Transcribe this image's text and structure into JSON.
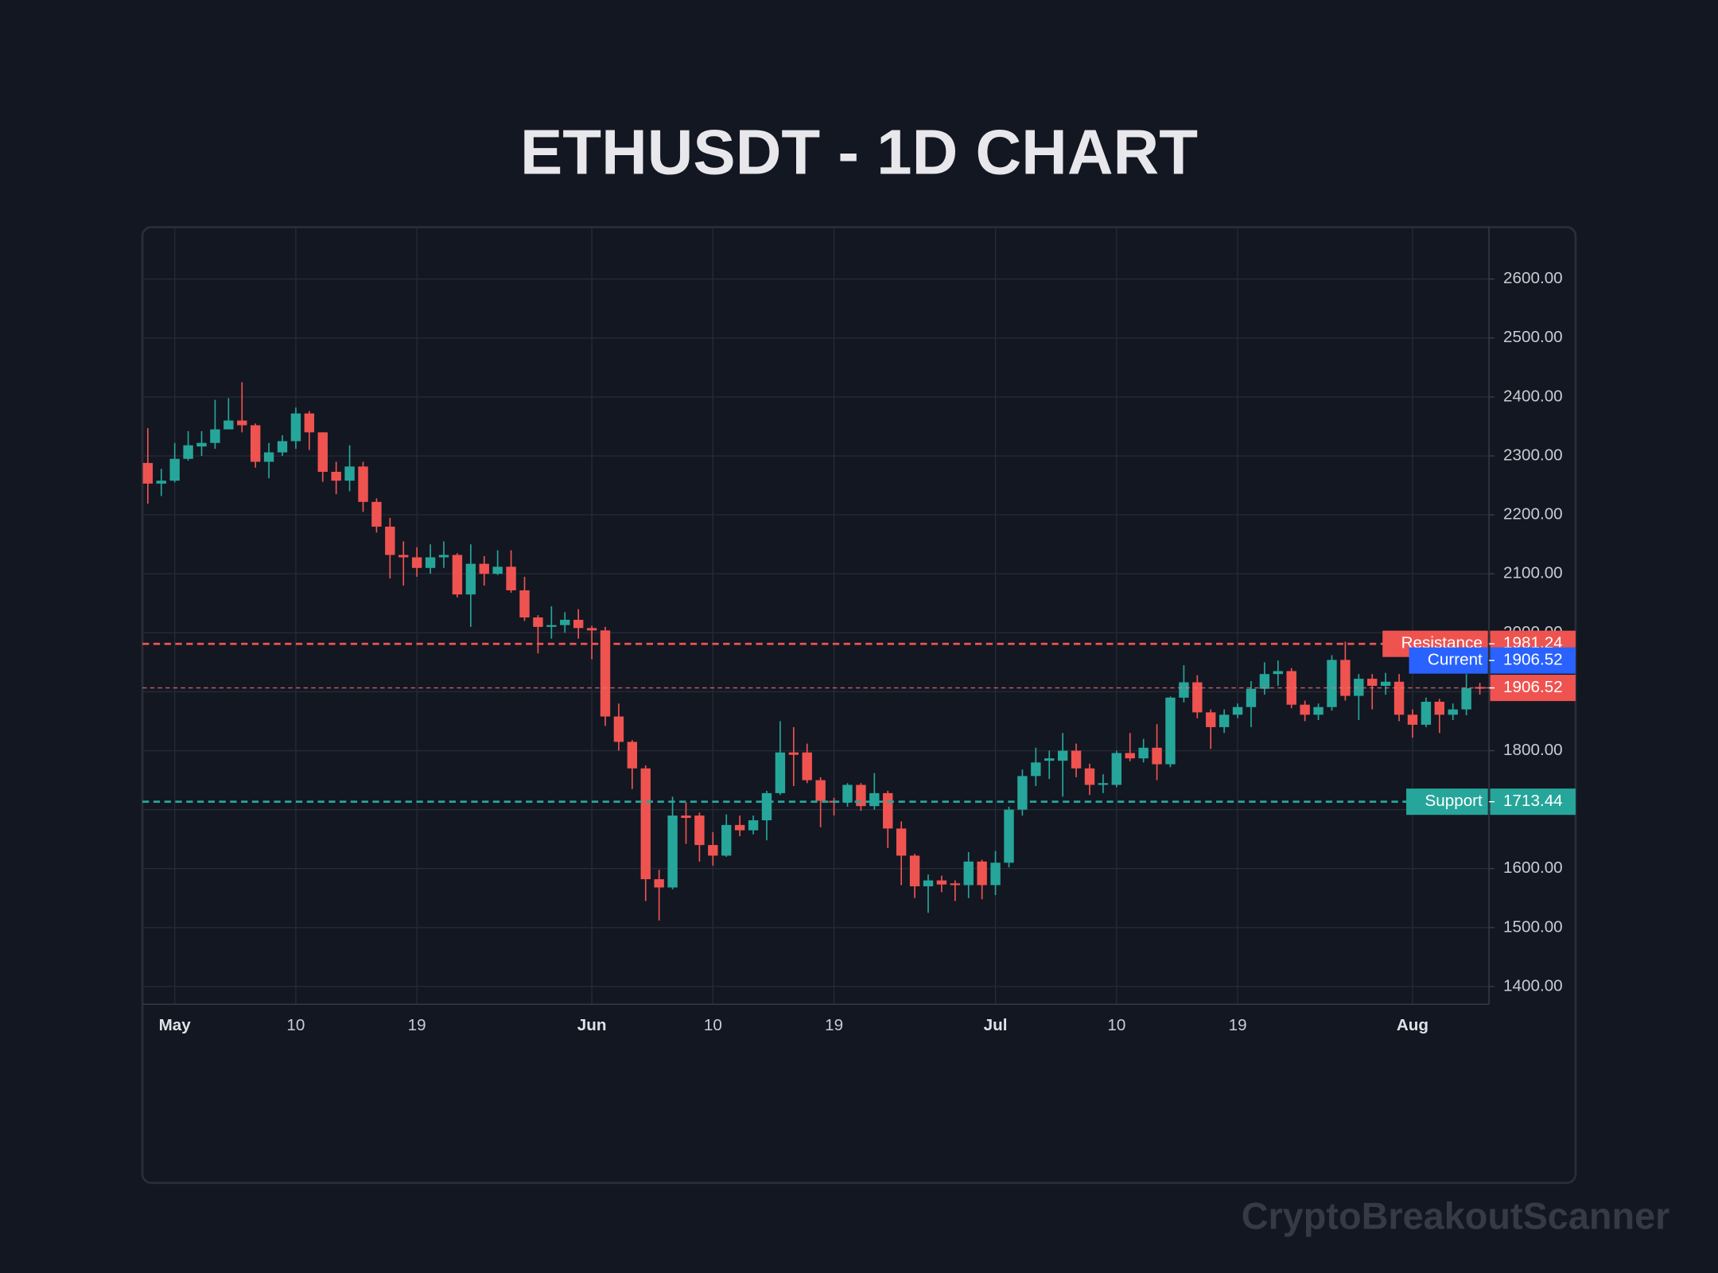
{
  "chart_data": {
    "type": "candlestick",
    "title": "ETHUSDT - 1D CHART",
    "watermark": "CryptoBreakoutScanner",
    "up_color": "#26a69a",
    "down_color": "#ef5350",
    "x": [
      "Apr 29",
      "Apr 30",
      "May 1",
      "May 2",
      "May 3",
      "May 4",
      "May 5",
      "May 6",
      "May 7",
      "May 8",
      "May 9",
      "May 10",
      "May 11",
      "May 12",
      "May 13",
      "May 14",
      "May 15",
      "May 16",
      "May 17",
      "May 18",
      "May 19",
      "May 20",
      "May 21",
      "May 22",
      "May 23",
      "May 24",
      "May 25",
      "May 26",
      "May 27",
      "May 28",
      "May 29",
      "May 30",
      "May 31",
      "Jun 1",
      "Jun 2",
      "Jun 3",
      "Jun 4",
      "Jun 5",
      "Jun 6",
      "Jun 7",
      "Jun 8",
      "Jun 9",
      "Jun 10",
      "Jun 11",
      "Jun 12",
      "Jun 13",
      "Jun 14",
      "Jun 15",
      "Jun 16",
      "Jun 17",
      "Jun 18",
      "Jun 19",
      "Jun 20",
      "Jun 21",
      "Jun 22",
      "Jun 23",
      "Jun 24",
      "Jun 25",
      "Jun 26",
      "Jun 27",
      "Jun 28",
      "Jun 29",
      "Jun 30",
      "Jul 1",
      "Jul 2",
      "Jul 3",
      "Jul 4",
      "Jul 5",
      "Jul 6",
      "Jul 7",
      "Jul 8",
      "Jul 9",
      "Jul 10",
      "Jul 11",
      "Jul 12",
      "Jul 13",
      "Jul 14",
      "Jul 15",
      "Jul 16",
      "Jul 17",
      "Jul 18",
      "Jul 19",
      "Jul 20",
      "Jul 21",
      "Jul 22",
      "Jul 23",
      "Jul 24",
      "Jul 25",
      "Jul 26",
      "Jul 27",
      "Jul 28",
      "Jul 29",
      "Jul 30",
      "Jul 31",
      "Aug 1",
      "Aug 2",
      "Aug 3",
      "Aug 4",
      "Aug 5",
      "Aug 6"
    ],
    "open": [
      2288,
      2253,
      2258,
      2295,
      2316,
      2322,
      2345,
      2360,
      2352,
      2290,
      2306,
      2325,
      2372,
      2340,
      2273,
      2258,
      2282,
      2222,
      2180,
      2132,
      2128,
      2110,
      2128,
      2132,
      2065,
      2117,
      2100,
      2112,
      2072,
      2026,
      2010,
      2013,
      2022,
      2008,
      2004,
      1858,
      1815,
      1770,
      1582,
      1568,
      1690,
      1690,
      1640,
      1622,
      1674,
      1665,
      1682,
      1728,
      1797,
      1797,
      1750,
      1715,
      1712,
      1742,
      1706,
      1728,
      1668,
      1622,
      1570,
      1580,
      1575,
      1572,
      1612,
      1572,
      1610,
      1700,
      1757,
      1783,
      1783,
      1800,
      1770,
      1742,
      1742,
      1796,
      1787,
      1805,
      1777,
      1890,
      1916,
      1865,
      1840,
      1861,
      1874,
      1905,
      1930,
      1935,
      1878,
      1861,
      1874,
      1954,
      1893,
      1922,
      1910,
      1917,
      1861,
      1844,
      1883,
      1861,
      1870,
      1908
    ],
    "high": [
      2347,
      2278,
      2322,
      2342,
      2342,
      2395,
      2398,
      2425,
      2355,
      2322,
      2335,
      2382,
      2376,
      2340,
      2290,
      2318,
      2290,
      2228,
      2195,
      2155,
      2145,
      2150,
      2155,
      2135,
      2150,
      2130,
      2140,
      2140,
      2095,
      2030,
      2045,
      2035,
      2040,
      2012,
      2010,
      1880,
      1818,
      1775,
      1598,
      1722,
      1712,
      1695,
      1662,
      1692,
      1690,
      1690,
      1732,
      1850,
      1840,
      1812,
      1755,
      1720,
      1745,
      1745,
      1762,
      1732,
      1680,
      1625,
      1590,
      1588,
      1580,
      1628,
      1615,
      1630,
      1705,
      1768,
      1805,
      1800,
      1830,
      1812,
      1778,
      1760,
      1800,
      1830,
      1820,
      1845,
      1892,
      1945,
      1928,
      1870,
      1870,
      1880,
      1918,
      1950,
      1953,
      1940,
      1885,
      1880,
      1962,
      1985,
      1930,
      1930,
      1932,
      1930,
      1870,
      1890,
      1888,
      1880,
      1930,
      1915
    ],
    "low": [
      2219,
      2232,
      2255,
      2292,
      2300,
      2312,
      2345,
      2340,
      2280,
      2262,
      2300,
      2312,
      2310,
      2256,
      2235,
      2240,
      2205,
      2170,
      2092,
      2080,
      2095,
      2100,
      2110,
      2060,
      2010,
      2080,
      2098,
      2068,
      2020,
      1965,
      1990,
      2000,
      1990,
      1955,
      1842,
      1800,
      1735,
      1545,
      1512,
      1565,
      1642,
      1612,
      1605,
      1620,
      1655,
      1658,
      1648,
      1725,
      1740,
      1745,
      1670,
      1690,
      1705,
      1698,
      1700,
      1635,
      1572,
      1550,
      1525,
      1560,
      1545,
      1550,
      1548,
      1555,
      1602,
      1690,
      1740,
      1752,
      1722,
      1755,
      1725,
      1728,
      1738,
      1782,
      1780,
      1750,
      1772,
      1882,
      1855,
      1803,
      1830,
      1855,
      1840,
      1895,
      1910,
      1872,
      1850,
      1852,
      1868,
      1885,
      1852,
      1870,
      1895,
      1850,
      1822,
      1840,
      1830,
      1852,
      1860,
      1895
    ],
    "close": [
      2253,
      2258,
      2295,
      2318,
      2322,
      2345,
      2360,
      2352,
      2290,
      2306,
      2325,
      2372,
      2340,
      2273,
      2258,
      2282,
      2222,
      2180,
      2132,
      2128,
      2110,
      2128,
      2132,
      2065,
      2117,
      2100,
      2112,
      2072,
      2026,
      2010,
      2013,
      2022,
      2008,
      2004,
      1858,
      1815,
      1770,
      1582,
      1568,
      1690,
      1686,
      1640,
      1622,
      1674,
      1665,
      1682,
      1728,
      1797,
      1793,
      1750,
      1715,
      1712,
      1742,
      1706,
      1728,
      1668,
      1622,
      1570,
      1580,
      1573,
      1572,
      1612,
      1572,
      1610,
      1700,
      1757,
      1780,
      1787,
      1800,
      1770,
      1742,
      1745,
      1796,
      1787,
      1805,
      1777,
      1890,
      1916,
      1865,
      1840,
      1861,
      1874,
      1905,
      1930,
      1935,
      1878,
      1861,
      1874,
      1954,
      1893,
      1922,
      1910,
      1917,
      1861,
      1844,
      1883,
      1861,
      1870,
      1906,
      1906.52
    ],
    "ylim": [
      1370,
      2688
    ],
    "yticks": [
      {
        "value": 1400,
        "label": "1400.00"
      },
      {
        "value": 1500,
        "label": "1500.00"
      },
      {
        "value": 1600,
        "label": "1600.00"
      },
      {
        "value": 1700,
        "label": "1700.00"
      },
      {
        "value": 1800,
        "label": "1800.00"
      },
      {
        "value": 1900,
        "label": "1900.00"
      },
      {
        "value": 2000,
        "label": "2000.00"
      },
      {
        "value": 2100,
        "label": "2100.00"
      },
      {
        "value": 2200,
        "label": "2200.00"
      },
      {
        "value": 2300,
        "label": "2300.00"
      },
      {
        "value": 2400,
        "label": "2400.00"
      },
      {
        "value": 2500,
        "label": "2500.00"
      },
      {
        "value": 2600,
        "label": "2600.00"
      }
    ],
    "xticks": [
      {
        "value": "May 1",
        "label": "May"
      },
      {
        "value": "May 10",
        "label": "10"
      },
      {
        "value": "May 19",
        "label": "19"
      },
      {
        "value": "Jun 1",
        "label": "Jun"
      },
      {
        "value": "Jun 10",
        "label": "10"
      },
      {
        "value": "Jun 19",
        "label": "19"
      },
      {
        "value": "Jul 1",
        "label": "Jul"
      },
      {
        "value": "Jul 10",
        "label": "10"
      },
      {
        "value": "Jul 19",
        "label": "19"
      },
      {
        "value": "Aug 1",
        "label": "Aug"
      }
    ],
    "grid": true,
    "levels": [
      {
        "name": "Resistance",
        "value": 1981.24,
        "color": "#ef5350"
      },
      {
        "name": "Support",
        "value": 1713.44,
        "color": "#26a69a"
      },
      {
        "name": "Current",
        "value": 1906.52,
        "color": "#2962ff"
      }
    ]
  }
}
